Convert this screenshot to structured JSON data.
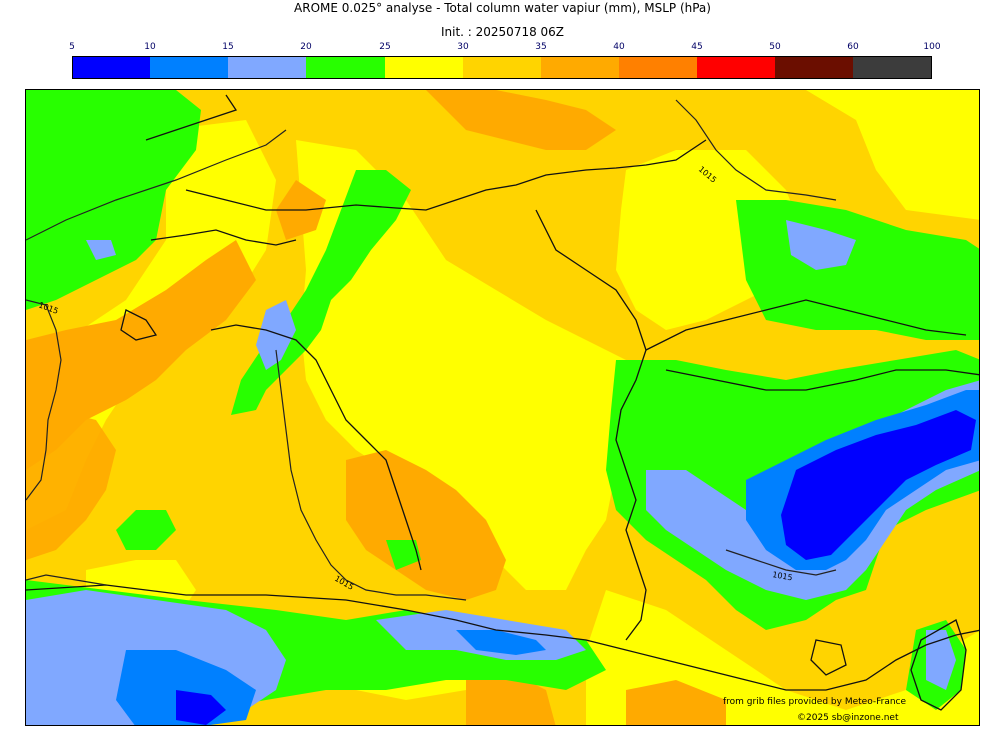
{
  "header": {
    "title": "AROME 0.025° analyse - Total column water vapiur (mm), MSLP (hPa)",
    "init": "Init. : 20250718 06Z"
  },
  "colorbar": {
    "ticks": [
      "5",
      "10",
      "15",
      "20",
      "25",
      "30",
      "35",
      "40",
      "45",
      "50",
      "60",
      "100"
    ],
    "colors": [
      "#0000ff",
      "#0080ff",
      "#80a8ff",
      "#28ff00",
      "#ffff00",
      "#ffd400",
      "#ffaa00",
      "#ff8000",
      "#ff0000",
      "#6b0e00",
      "#3c3c3c"
    ]
  },
  "map": {
    "isobar_labels": [
      "1015",
      "1015",
      "1015",
      "1015"
    ]
  },
  "credits": {
    "line1": "from grib files provided by Meteo-France",
    "line2": "©2025 sb@inzone.net"
  }
}
